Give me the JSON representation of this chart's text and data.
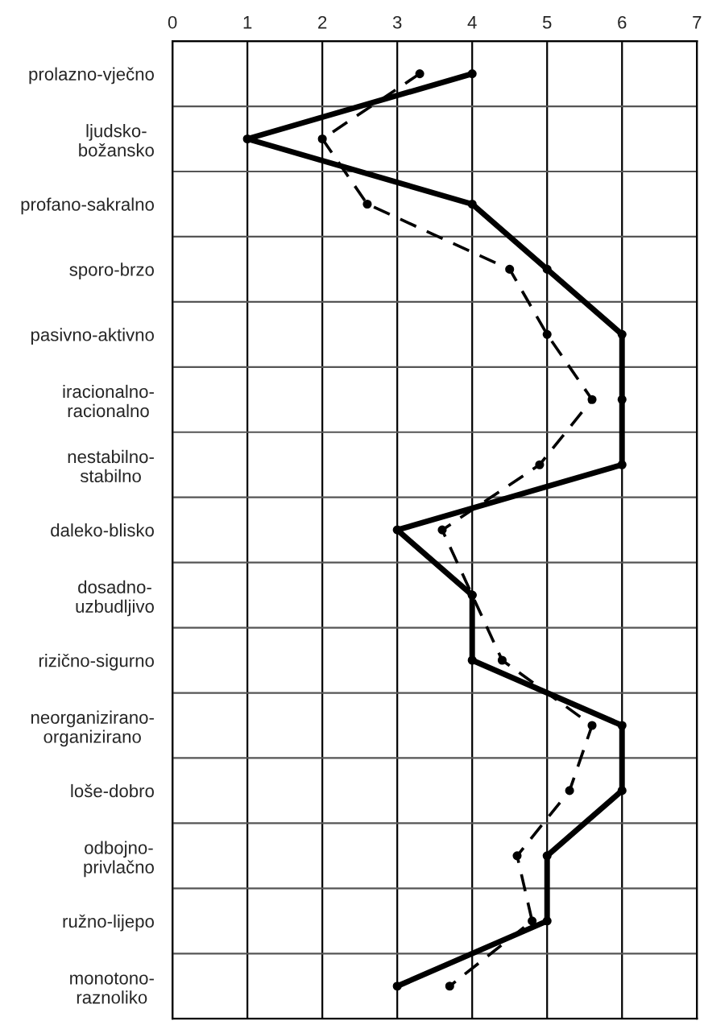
{
  "chart_data": {
    "type": "line",
    "orientation": "horizontal",
    "categories": [
      "prolazno-vječno",
      "ljudsko-\nbožansko",
      "profano-sakralno",
      "sporo-brzo",
      "pasivno-aktivno",
      "iracionalno-\nracionalno",
      "nestabilno-\nstabilno",
      "daleko-blisko",
      "dosadno-\nuzbudljivo",
      "rizično-sigurno",
      "neorganizirano-\norganizirano",
      "loše-dobro",
      "odbojno-\nprivlačno",
      "ružno-lijepo",
      "monotono-\nraznoliko"
    ],
    "series": [
      {
        "color": "#000000",
        "line_style": "solid",
        "values": [
          4,
          1,
          4,
          5,
          6,
          6,
          6,
          3,
          4,
          4,
          6,
          6,
          5,
          5,
          3
        ]
      },
      {
        "color": "#000000",
        "line_style": "dashed",
        "values": [
          3.3,
          2.0,
          2.6,
          4.5,
          5.0,
          5.6,
          4.9,
          3.6,
          4.0,
          4.4,
          5.6,
          5.3,
          4.6,
          4.8,
          3.7
        ]
      }
    ],
    "xlim": [
      0,
      7
    ],
    "xticks": [
      0,
      1,
      2,
      3,
      4,
      5,
      6,
      7
    ],
    "grid": true,
    "marker": "circle"
  }
}
